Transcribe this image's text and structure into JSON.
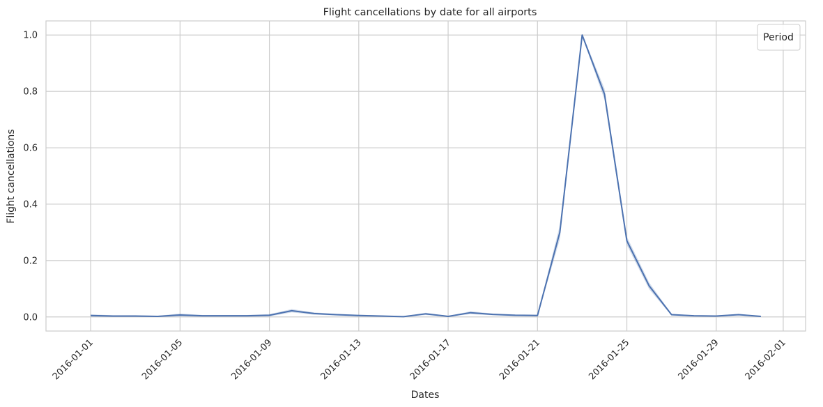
{
  "chart_data": {
    "type": "line",
    "title": "Flight cancellations by date for all airports",
    "xlabel": "Dates",
    "ylabel": "Flight cancellations",
    "x_tick_labels": [
      "2016-01-01",
      "2016-01-05",
      "2016-01-09",
      "2016-01-13",
      "2016-01-17",
      "2016-01-21",
      "2016-01-25",
      "2016-01-29",
      "2016-02-01"
    ],
    "y_tick_labels": [
      "0.0",
      "0.2",
      "0.4",
      "0.6",
      "0.8",
      "1.0"
    ],
    "y_ticks": [
      0.0,
      0.2,
      0.4,
      0.6,
      0.8,
      1.0
    ],
    "xlim": [
      "2015-12-30",
      "2016-02-02"
    ],
    "ylim": [
      -0.05,
      1.05
    ],
    "grid": true,
    "legend": {
      "title": "Period",
      "placement": "upper right",
      "entries": []
    },
    "series": [
      {
        "color": "#4c72b0",
        "x": [
          "2016-01-01",
          "2016-01-02",
          "2016-01-03",
          "2016-01-04",
          "2016-01-05",
          "2016-01-06",
          "2016-01-07",
          "2016-01-08",
          "2016-01-09",
          "2016-01-10",
          "2016-01-11",
          "2016-01-12",
          "2016-01-13",
          "2016-01-14",
          "2016-01-15",
          "2016-01-16",
          "2016-01-17",
          "2016-01-18",
          "2016-01-19",
          "2016-01-20",
          "2016-01-21",
          "2016-01-22",
          "2016-01-23",
          "2016-01-24",
          "2016-01-25",
          "2016-01-26",
          "2016-01-27",
          "2016-01-28",
          "2016-01-29",
          "2016-01-30",
          "2016-01-31"
        ],
        "values": [
          0.005,
          0.003,
          0.003,
          0.002,
          0.007,
          0.004,
          0.004,
          0.004,
          0.006,
          0.022,
          0.012,
          0.008,
          0.005,
          0.003,
          0.001,
          0.011,
          0.002,
          0.015,
          0.009,
          0.006,
          0.005,
          0.3,
          1.0,
          0.79,
          0.27,
          0.11,
          0.008,
          0.004,
          0.003,
          0.008,
          0.002
        ],
        "band": [
          0.004,
          0.003,
          0.003,
          0.002,
          0.005,
          0.003,
          0.003,
          0.003,
          0.004,
          0.006,
          0.004,
          0.003,
          0.003,
          0.002,
          0.001,
          0.004,
          0.001,
          0.005,
          0.003,
          0.003,
          0.003,
          0.025,
          0.004,
          0.02,
          0.015,
          0.012,
          0.003,
          0.002,
          0.002,
          0.003,
          0.001
        ]
      }
    ]
  }
}
